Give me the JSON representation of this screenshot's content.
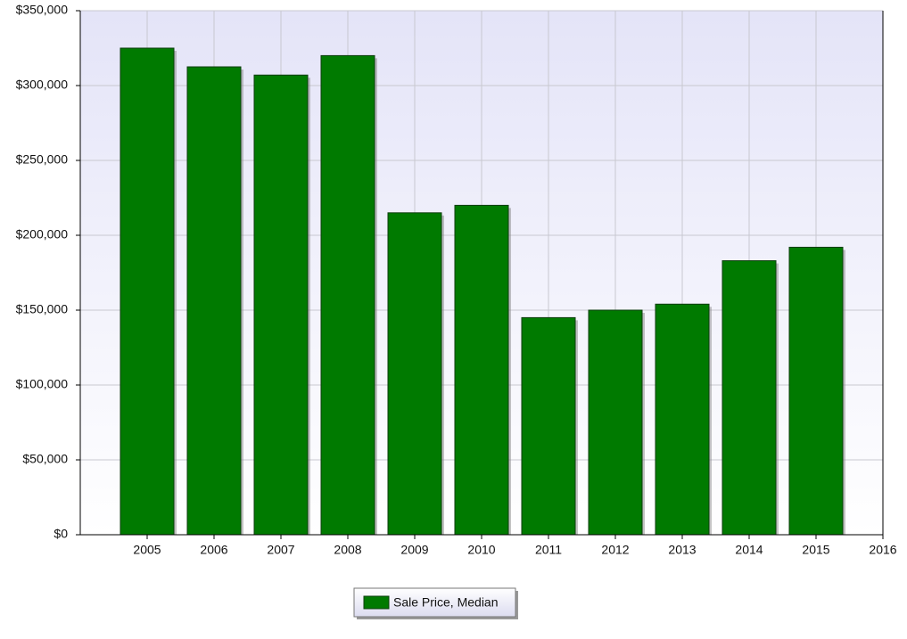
{
  "chart_data": {
    "type": "bar",
    "x": [
      2005,
      2006,
      2007,
      2008,
      2009,
      2010,
      2011,
      2012,
      2013,
      2014,
      2015
    ],
    "series": [
      {
        "name": "Sale Price, Median",
        "color": "#007a00",
        "values": [
          325000,
          312500,
          307000,
          320000,
          215000,
          220000,
          145000,
          150000,
          154000,
          183000,
          192000
        ]
      }
    ],
    "xlim": [
      2004,
      2016
    ],
    "xticks": [
      2005,
      2006,
      2007,
      2008,
      2009,
      2010,
      2011,
      2012,
      2013,
      2014,
      2015,
      2016
    ],
    "ylim": [
      0,
      350000
    ],
    "yticks": [
      {
        "value": 0,
        "label": "$0"
      },
      {
        "value": 50000,
        "label": "$50,000"
      },
      {
        "value": 100000,
        "label": "$100,000"
      },
      {
        "value": 150000,
        "label": "$150,000"
      },
      {
        "value": 200000,
        "label": "$200,000"
      },
      {
        "value": 250000,
        "label": "$250,000"
      },
      {
        "value": 300000,
        "label": "$300,000"
      },
      {
        "value": 350000,
        "label": "$350,000"
      }
    ],
    "grid": true,
    "legend": "bottom"
  }
}
